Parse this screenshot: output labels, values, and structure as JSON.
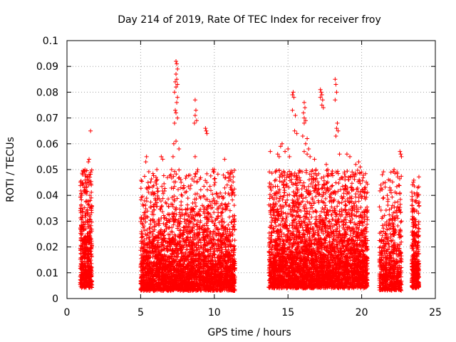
{
  "chart_data": {
    "type": "scatter",
    "title": "Day 214 of 2019, Rate Of TEC Index for receiver froy",
    "xlabel": "GPS time / hours",
    "ylabel": "ROTI / TECUs",
    "xlim": [
      0,
      25
    ],
    "ylim": [
      0,
      0.1
    ],
    "x_ticks": [
      0,
      5,
      10,
      15,
      20,
      25
    ],
    "x_tick_labels": [
      "0",
      "5",
      "10",
      "15",
      "20",
      "25"
    ],
    "y_ticks": [
      0,
      0.01,
      0.02,
      0.03,
      0.04,
      0.05,
      0.06,
      0.07,
      0.08,
      0.09,
      0.1
    ],
    "y_tick_labels": [
      "0",
      "0.01",
      "0.02",
      "0.03",
      "0.04",
      "0.05",
      "0.06",
      "0.07",
      "0.08",
      "0.09",
      "0.1"
    ],
    "grid": true,
    "marker": "+",
    "color": "#ff0000",
    "series": [
      {
        "name": "ROTI",
        "clusters": [
          {
            "x_range": [
              0.9,
              1.7
            ],
            "count": 520,
            "y_base": 0.004,
            "y_scale": 0.016
          },
          {
            "x_range": [
              5.0,
              11.4
            ],
            "count": 3200,
            "y_base": 0.003,
            "y_scale": 0.013
          },
          {
            "x_range": [
              13.7,
              20.4
            ],
            "count": 3600,
            "y_base": 0.004,
            "y_scale": 0.015
          },
          {
            "x_range": [
              21.2,
              22.7
            ],
            "count": 620,
            "y_base": 0.003,
            "y_scale": 0.013
          },
          {
            "x_range": [
              23.4,
              23.9
            ],
            "count": 340,
            "y_base": 0.004,
            "y_scale": 0.013
          }
        ],
        "points": [
          {
            "x": 1.6,
            "y": 0.065
          },
          {
            "x": 1.5,
            "y": 0.054
          },
          {
            "x": 1.45,
            "y": 0.053
          },
          {
            "x": 1.5,
            "y": 0.048
          },
          {
            "x": 1.4,
            "y": 0.047
          },
          {
            "x": 1.1,
            "y": 0.044
          },
          {
            "x": 1.0,
            "y": 0.04
          },
          {
            "x": 1.3,
            "y": 0.043
          },
          {
            "x": 1.55,
            "y": 0.04
          },
          {
            "x": 5.4,
            "y": 0.055
          },
          {
            "x": 5.35,
            "y": 0.053
          },
          {
            "x": 5.5,
            "y": 0.045
          },
          {
            "x": 6.4,
            "y": 0.055
          },
          {
            "x": 6.5,
            "y": 0.054
          },
          {
            "x": 6.1,
            "y": 0.05
          },
          {
            "x": 7.2,
            "y": 0.055
          },
          {
            "x": 7.1,
            "y": 0.05
          },
          {
            "x": 7.05,
            "y": 0.048
          },
          {
            "x": 7.4,
            "y": 0.092
          },
          {
            "x": 7.45,
            "y": 0.091
          },
          {
            "x": 7.5,
            "y": 0.089
          },
          {
            "x": 7.4,
            "y": 0.087
          },
          {
            "x": 7.45,
            "y": 0.085
          },
          {
            "x": 7.35,
            "y": 0.084
          },
          {
            "x": 7.5,
            "y": 0.083
          },
          {
            "x": 7.4,
            "y": 0.082
          },
          {
            "x": 7.3,
            "y": 0.08
          },
          {
            "x": 7.5,
            "y": 0.078
          },
          {
            "x": 7.45,
            "y": 0.076
          },
          {
            "x": 7.35,
            "y": 0.073
          },
          {
            "x": 7.4,
            "y": 0.072
          },
          {
            "x": 7.5,
            "y": 0.07
          },
          {
            "x": 7.3,
            "y": 0.068
          },
          {
            "x": 7.4,
            "y": 0.061
          },
          {
            "x": 7.25,
            "y": 0.06
          },
          {
            "x": 7.6,
            "y": 0.058
          },
          {
            "x": 8.7,
            "y": 0.077
          },
          {
            "x": 8.75,
            "y": 0.073
          },
          {
            "x": 8.7,
            "y": 0.071
          },
          {
            "x": 8.8,
            "y": 0.069
          },
          {
            "x": 8.65,
            "y": 0.068
          },
          {
            "x": 8.7,
            "y": 0.055
          },
          {
            "x": 9.4,
            "y": 0.066
          },
          {
            "x": 9.45,
            "y": 0.065
          },
          {
            "x": 9.5,
            "y": 0.064
          },
          {
            "x": 9.9,
            "y": 0.05
          },
          {
            "x": 10.0,
            "y": 0.05
          },
          {
            "x": 10.05,
            "y": 0.045
          },
          {
            "x": 10.7,
            "y": 0.054
          },
          {
            "x": 11.1,
            "y": 0.043
          },
          {
            "x": 11.2,
            "y": 0.042
          },
          {
            "x": 13.8,
            "y": 0.057
          },
          {
            "x": 14.3,
            "y": 0.056
          },
          {
            "x": 14.4,
            "y": 0.055
          },
          {
            "x": 14.5,
            "y": 0.059
          },
          {
            "x": 14.6,
            "y": 0.06
          },
          {
            "x": 14.8,
            "y": 0.057
          },
          {
            "x": 15.0,
            "y": 0.058
          },
          {
            "x": 15.1,
            "y": 0.055
          },
          {
            "x": 15.3,
            "y": 0.079
          },
          {
            "x": 15.35,
            "y": 0.08
          },
          {
            "x": 15.4,
            "y": 0.078
          },
          {
            "x": 15.3,
            "y": 0.073
          },
          {
            "x": 15.5,
            "y": 0.071
          },
          {
            "x": 15.45,
            "y": 0.065
          },
          {
            "x": 15.6,
            "y": 0.064
          },
          {
            "x": 16.1,
            "y": 0.076
          },
          {
            "x": 16.15,
            "y": 0.074
          },
          {
            "x": 16.05,
            "y": 0.072
          },
          {
            "x": 16.1,
            "y": 0.07
          },
          {
            "x": 16.2,
            "y": 0.069
          },
          {
            "x": 16.1,
            "y": 0.068
          },
          {
            "x": 16.0,
            "y": 0.063
          },
          {
            "x": 16.3,
            "y": 0.062
          },
          {
            "x": 16.2,
            "y": 0.06
          },
          {
            "x": 16.4,
            "y": 0.058
          },
          {
            "x": 16.1,
            "y": 0.057
          },
          {
            "x": 16.3,
            "y": 0.056
          },
          {
            "x": 16.5,
            "y": 0.055
          },
          {
            "x": 16.8,
            "y": 0.054
          },
          {
            "x": 16.9,
            "y": 0.05
          },
          {
            "x": 17.2,
            "y": 0.081
          },
          {
            "x": 17.25,
            "y": 0.08
          },
          {
            "x": 17.3,
            "y": 0.079
          },
          {
            "x": 17.2,
            "y": 0.078
          },
          {
            "x": 17.35,
            "y": 0.077
          },
          {
            "x": 17.3,
            "y": 0.075
          },
          {
            "x": 17.4,
            "y": 0.074
          },
          {
            "x": 17.6,
            "y": 0.052
          },
          {
            "x": 17.7,
            "y": 0.05
          },
          {
            "x": 18.2,
            "y": 0.085
          },
          {
            "x": 18.25,
            "y": 0.083
          },
          {
            "x": 18.3,
            "y": 0.08
          },
          {
            "x": 18.2,
            "y": 0.077
          },
          {
            "x": 18.35,
            "y": 0.068
          },
          {
            "x": 18.3,
            "y": 0.066
          },
          {
            "x": 18.4,
            "y": 0.065
          },
          {
            "x": 18.25,
            "y": 0.063
          },
          {
            "x": 18.5,
            "y": 0.056
          },
          {
            "x": 19.0,
            "y": 0.056
          },
          {
            "x": 19.2,
            "y": 0.055
          },
          {
            "x": 19.8,
            "y": 0.053
          },
          {
            "x": 19.6,
            "y": 0.052
          },
          {
            "x": 19.9,
            "y": 0.051
          },
          {
            "x": 20.0,
            "y": 0.049
          },
          {
            "x": 22.0,
            "y": 0.041
          },
          {
            "x": 21.6,
            "y": 0.045
          },
          {
            "x": 22.2,
            "y": 0.05
          },
          {
            "x": 22.4,
            "y": 0.049
          },
          {
            "x": 22.6,
            "y": 0.057
          },
          {
            "x": 22.65,
            "y": 0.056
          },
          {
            "x": 22.7,
            "y": 0.055
          },
          {
            "x": 22.0,
            "y": 0.042
          },
          {
            "x": 21.3,
            "y": 0.044
          },
          {
            "x": 21.4,
            "y": 0.048
          },
          {
            "x": 23.8,
            "y": 0.043
          },
          {
            "x": 23.75,
            "y": 0.041
          },
          {
            "x": 23.8,
            "y": 0.04
          },
          {
            "x": 23.7,
            "y": 0.038
          },
          {
            "x": 23.9,
            "y": 0.036
          }
        ]
      }
    ]
  }
}
